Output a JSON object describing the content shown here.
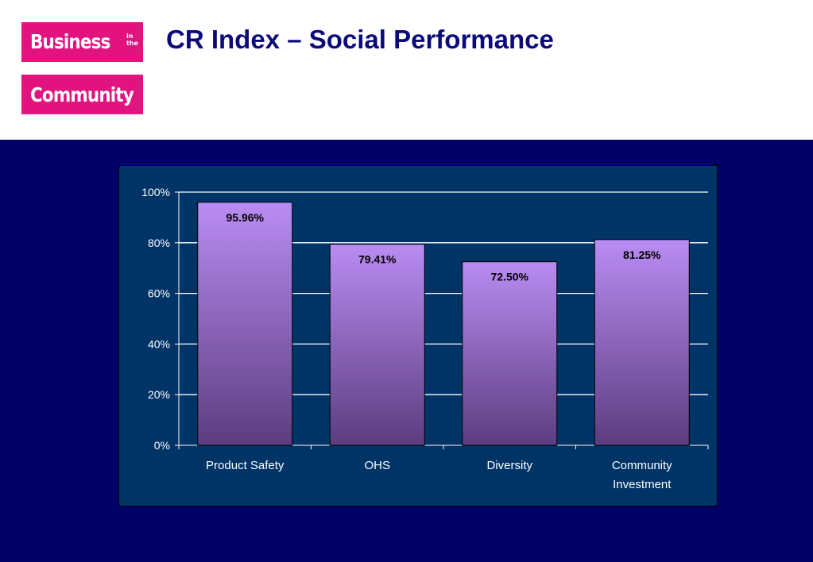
{
  "logo": {
    "line1": "Business",
    "small": "in the",
    "line2": "Community",
    "color": "#e2137f"
  },
  "slide": {
    "title": "CR Index – Social Performance",
    "title_color": "#0c0a78",
    "background": "#000066"
  },
  "chart_data": {
    "type": "bar",
    "title": "",
    "xlabel": "",
    "ylabel": "",
    "categories": [
      "Product Safety",
      "OHS",
      "Diversity",
      "Community Investment"
    ],
    "values": [
      95.96,
      79.41,
      72.5,
      81.25
    ],
    "data_labels": [
      "95.96%",
      "79.41%",
      "72.50%",
      "81.25%"
    ],
    "ylim": [
      0,
      100
    ],
    "y_ticks": [
      0,
      20,
      40,
      60,
      80,
      100
    ],
    "y_tick_labels": [
      "0%",
      "20%",
      "40%",
      "60%",
      "80%",
      "100%"
    ],
    "grid": true,
    "legend": "none",
    "plot_background": "#003366",
    "bar_color_top": "#b98cf3",
    "bar_color_bottom": "#5c3d7f",
    "gridline_color": "#ffffff",
    "text_color": "#ffffff",
    "data_label_color": "#000000"
  }
}
